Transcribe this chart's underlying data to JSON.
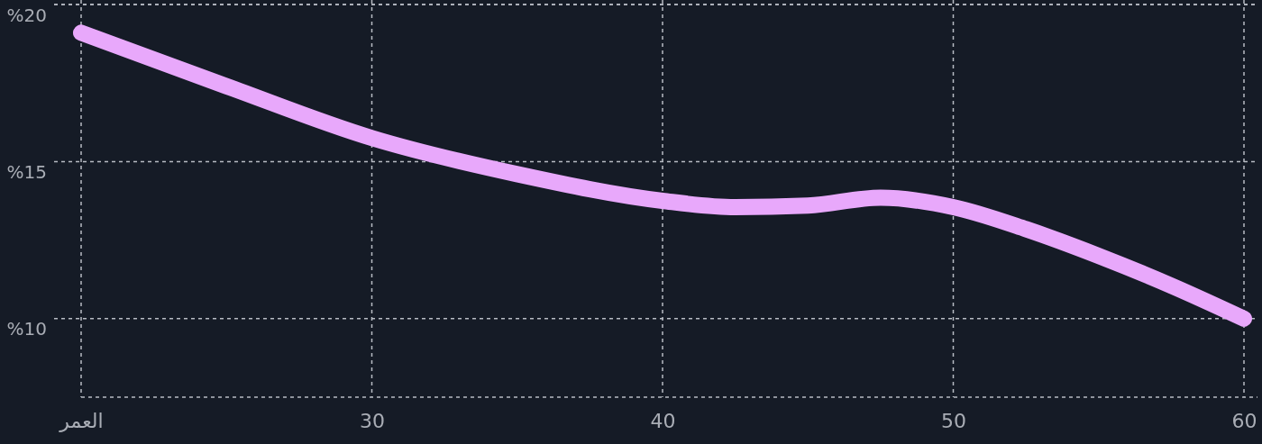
{
  "chart_data": {
    "type": "line",
    "x": [
      20,
      25,
      30,
      35,
      40,
      42.5,
      45,
      47.5,
      50,
      52.5,
      55,
      57.5,
      60
    ],
    "series": [
      {
        "color": "#e8a8fb",
        "values": [
          19.1,
          17.4,
          15.75,
          14.6,
          13.75,
          13.55,
          13.6,
          13.85,
          13.55,
          12.85,
          12,
          11.05,
          10
        ]
      }
    ],
    "xlim": [
      20,
      60
    ],
    "ylim": [
      7.5,
      20
    ],
    "xticks": [
      {
        "value": 20,
        "label": "العمر"
      },
      30,
      40,
      50,
      60
    ],
    "yticks": [
      {
        "value": 10,
        "label": "%10"
      },
      {
        "value": 15,
        "label": "%15"
      },
      {
        "value": 20,
        "label": "%20"
      }
    ],
    "grid": true,
    "line_style": "solid"
  }
}
